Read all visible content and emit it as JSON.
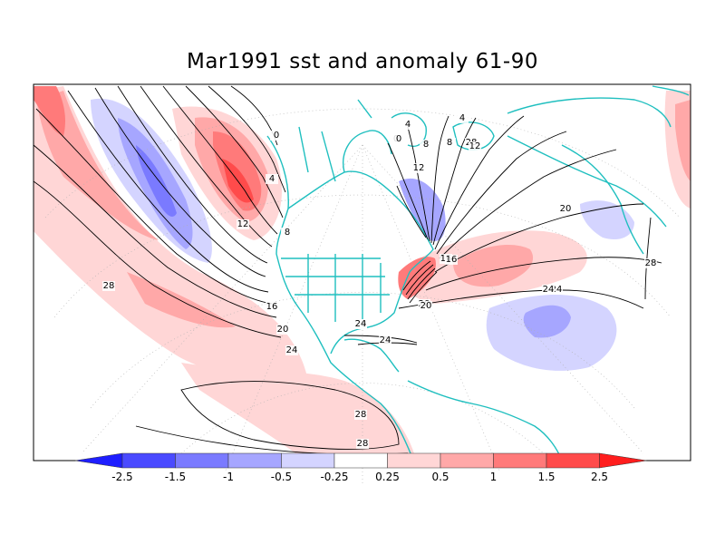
{
  "title": "Mar1991 sst and anomaly 61-90",
  "colorbar": {
    "colors": [
      "#1e1eff",
      "#4a4aff",
      "#7a7aff",
      "#a6a6ff",
      "#d4d4ff",
      "#ffffff",
      "#ffd6d6",
      "#ffa8a8",
      "#ff7a7a",
      "#ff4b4b",
      "#ff1d1d"
    ],
    "ticks": [
      "-2.5",
      "-1.5",
      "-1",
      "-0.5",
      "-0.25",
      "0.25",
      "0.5",
      "1",
      "1.5",
      "2.5"
    ]
  },
  "contour_labels": [
    "28",
    "24",
    "20",
    "16",
    "12",
    "8",
    "4",
    "0",
    "0",
    "4",
    "8",
    "12",
    "16",
    "20",
    "24",
    "28",
    "20",
    "24",
    "28",
    "28",
    "20",
    "24",
    "20",
    "24",
    "28",
    "0",
    "4",
    "8",
    "12",
    "16"
  ],
  "colors": {
    "coastline": "#1fbfbf",
    "contour": "#000000",
    "frame": "#000000"
  }
}
